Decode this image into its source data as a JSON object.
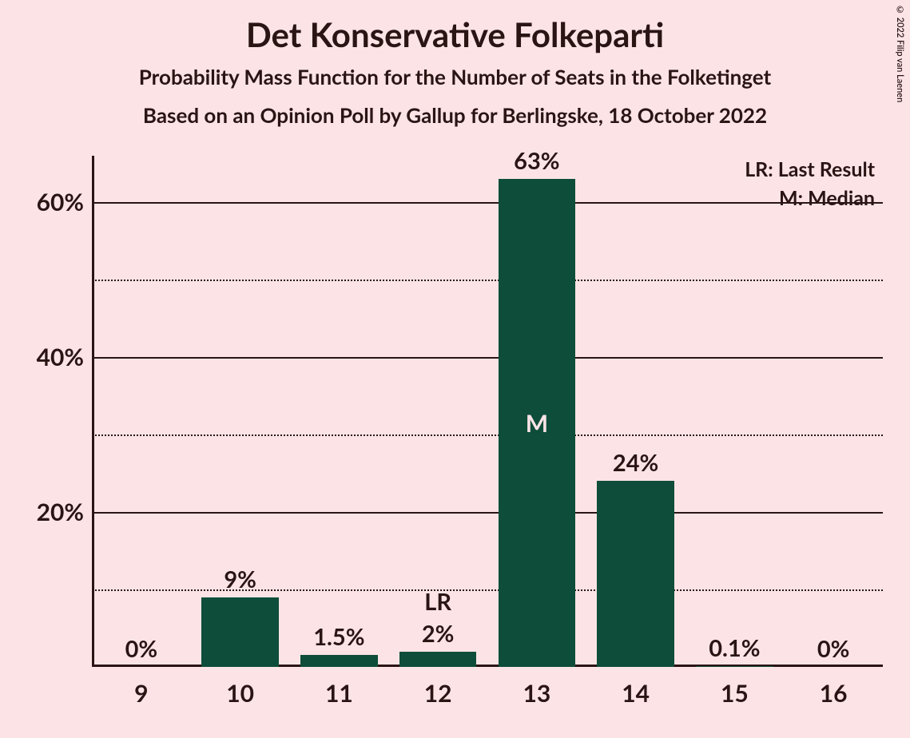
{
  "background_color": "#fce4e6",
  "text_color": "#2a1414",
  "axis_color": "#2a1414",
  "grid_color": "#2a1414",
  "bar_color": "#0d4d39",
  "inner_label_color": "#fce4e6",
  "title": "Det Konservative Folkeparti",
  "title_fontsize": 42,
  "subtitle1": "Probability Mass Function for the Number of Seats in the Folketinget",
  "subtitle2": "Based on an Opinion Poll by Gallup for Berlingske, 18 October 2022",
  "subtitle_fontsize": 26,
  "copyright": "© 2022 Filip van Laenen",
  "legend": {
    "lr": "LR: Last Result",
    "m": "M: Median",
    "fontsize": 25
  },
  "chart": {
    "type": "bar",
    "x_categories": [
      "9",
      "10",
      "11",
      "12",
      "13",
      "14",
      "15",
      "16"
    ],
    "values": [
      0,
      9,
      1.5,
      2,
      63,
      24,
      0.1,
      0
    ],
    "value_labels": [
      "0%",
      "9%",
      "1.5%",
      "2%",
      "63%",
      "24%",
      "0.1%",
      "0%"
    ],
    "annotations": {
      "3": "LR"
    },
    "inner_labels": {
      "4": "M"
    },
    "y_axis": {
      "min": 0,
      "max": 66,
      "major_ticks": [
        20,
        40,
        60
      ],
      "minor_ticks": [
        10,
        30,
        50
      ],
      "tick_labels": [
        "20%",
        "40%",
        "60%"
      ],
      "label_fontsize": 30
    },
    "x_axis": {
      "label_fontsize": 30
    },
    "bar_value_fontsize": 29,
    "bar_annotation_fontsize": 29,
    "bar_inner_fontsize": 30,
    "bar_width_ratio": 0.78
  }
}
